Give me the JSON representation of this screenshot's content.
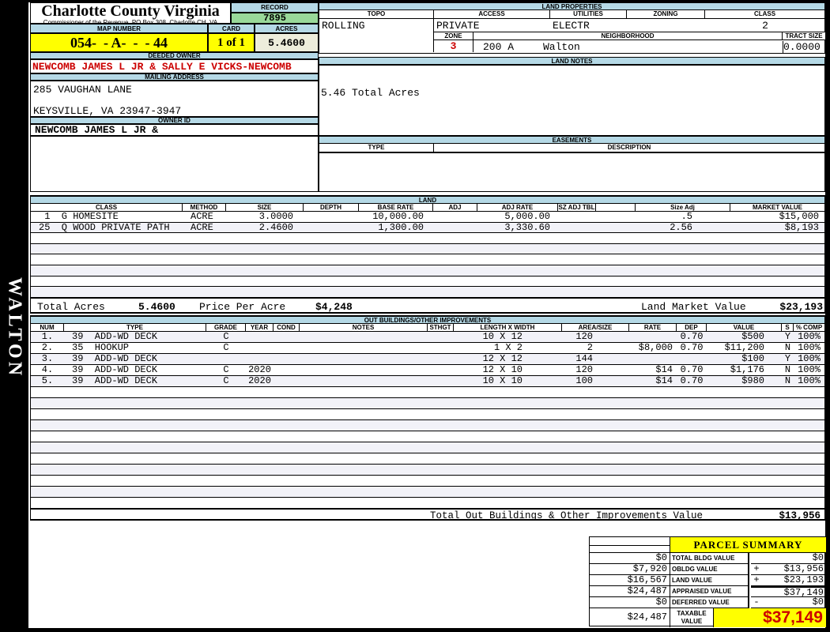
{
  "sidebar": {
    "vertical_text": "WALTON"
  },
  "colors": {
    "header_blue": "#b5d9e6",
    "record_green": "#99d999",
    "highlight_yellow": "#ffff00",
    "acres_cream": "#ededdb",
    "alert_red": "#cc0000",
    "row_stripe": "#f2f2f8"
  },
  "header": {
    "county": "Charlotte County Virginia",
    "commissioner": "Commissioner of the Revenue, PO Box 308, Charlotte CH, VA",
    "record_label": "RECORD",
    "record_value": "7895",
    "map_label": "MAP NUMBER",
    "map_value": "054-  - A-  -  - 44",
    "card_label": "CARD",
    "card_value": "1 of 1",
    "acres_label": "ACRES",
    "acres_value": "5.4600"
  },
  "owner": {
    "deeded_owner_label": "DEEDED OWNER",
    "deeded_owner": "NEWCOMB JAMES L JR & SALLY E VICKS-NEWCOMB",
    "mailing_address_label": "MAILING ADDRESS",
    "address_line1": "285 VAUGHAN LANE",
    "address_line2": "KEYSVILLE, VA 23947-3947",
    "owner_id_label": "OWNER ID",
    "owner_id": "NEWCOMB JAMES L JR &"
  },
  "land_properties": {
    "title": "LAND PROPERTIES",
    "headers": [
      "TOPO",
      "ACCESS",
      "UTILITIES",
      "ZONING",
      "CLASS"
    ],
    "topo": "ROLLING",
    "access": "PRIVATE",
    "utilities": "ELECTR",
    "zoning": "",
    "class": "2",
    "zone_label": "ZONE",
    "zone_value": "3",
    "zone_area": "200 A",
    "neighborhood_label": "NEIGHBORHOOD",
    "neighborhood_value": "Walton",
    "tract_label": "TRACT SIZE",
    "tract_value": "0.0000"
  },
  "land_notes": {
    "title": "LAND NOTES",
    "note": "5.46 Total Acres"
  },
  "easements": {
    "title": "EASEMENTS",
    "headers": [
      "TYPE",
      "DESCRIPTION"
    ]
  },
  "land": {
    "title": "LAND",
    "headers": [
      "CLASS",
      "METHOD",
      "SIZE",
      "DEPTH",
      "BASE RATE",
      "ADJ",
      "ADJ RATE",
      "SZ ADJ TBL",
      "",
      "Size Adj",
      "MARKET VALUE"
    ],
    "rows": [
      {
        "class": " 1  G HOMESITE",
        "method": "ACRE",
        "size": "3.0000",
        "depth": "",
        "base_rate": "10,000.00",
        "adj": "",
        "adj_rate": "5,000.00",
        "sz_adj_tbl": "",
        "blank": "",
        "size_adj": ".5",
        "market_value": "$15,000"
      },
      {
        "class": "25  Q WOOD PRIVATE PATH",
        "method": "ACRE",
        "size": "2.4600",
        "depth": "",
        "base_rate": "1,300.00",
        "adj": "",
        "adj_rate": "3,330.60",
        "sz_adj_tbl": "",
        "blank": "",
        "size_adj": "2.56",
        "market_value": "$8,193"
      }
    ],
    "total_acres_label": "Total Acres",
    "total_acres_value": "5.4600",
    "price_per_acre_label": "Price Per Acre",
    "price_per_acre_value": "$4,248",
    "market_value_label": "Land Market Value",
    "market_value_value": "$23,193"
  },
  "outbuildings": {
    "title": "OUT BUILDINGS/OTHER IMPROVEMENTS",
    "headers": [
      "NUM",
      "TYPE",
      "GRADE",
      "YEAR",
      "COND",
      "NOTES",
      "STHGT",
      "LENGTH X WIDTH",
      "AREA/SIZE",
      "RATE",
      "DEP",
      "VALUE",
      "S",
      "% COMP"
    ],
    "rows": [
      {
        "num": "1.",
        "type": "39  ADD-WD DECK",
        "grade": "C",
        "year": "",
        "cond": "",
        "notes": "",
        "sthgt": "",
        "lxw": "10 X 12",
        "area": "120",
        "rate": "",
        "dep": "0.70",
        "value": "$500",
        "s": "Y",
        "comp": "100%"
      },
      {
        "num": "2.",
        "type": "35  HOOKUP",
        "grade": "C",
        "year": "",
        "cond": "",
        "notes": "",
        "sthgt": "",
        "lxw": "1 X 2",
        "area": "2",
        "rate": "$8,000",
        "dep": "0.70",
        "value": "$11,200",
        "s": "N",
        "comp": "100%"
      },
      {
        "num": "3.",
        "type": "39  ADD-WD DECK",
        "grade": "",
        "year": "",
        "cond": "",
        "notes": "",
        "sthgt": "",
        "lxw": "12 X 12",
        "area": "144",
        "rate": "",
        "dep": "",
        "value": "$100",
        "s": "Y",
        "comp": "100%"
      },
      {
        "num": "4.",
        "type": "39  ADD-WD DECK",
        "grade": "C",
        "year": "2020",
        "cond": "",
        "notes": "",
        "sthgt": "",
        "lxw": "12 X 10",
        "area": "120",
        "rate": "$14",
        "dep": "0.70",
        "value": "$1,176",
        "s": "N",
        "comp": "100%"
      },
      {
        "num": "5.",
        "type": "39  ADD-WD DECK",
        "grade": "C",
        "year": "2020",
        "cond": "",
        "notes": "",
        "sthgt": "",
        "lxw": "10 X 10",
        "area": "100",
        "rate": "$14",
        "dep": "0.70",
        "value": "$980",
        "s": "N",
        "comp": "100%"
      }
    ],
    "total_label": "Total Out Buildings & Other Improvements Value",
    "total_value": "$13,956"
  },
  "parcel_summary": {
    "title": "PARCEL SUMMARY",
    "rows": [
      {
        "prior": "$0",
        "label": "TOTAL BLDG VALUE",
        "op": "",
        "value": "$0"
      },
      {
        "prior": "$7,920",
        "label": "OBLDG VALUE",
        "op": "+",
        "value": "$13,956"
      },
      {
        "prior": "$16,567",
        "label": "LAND VALUE",
        "op": "+",
        "value": "$23,193"
      },
      {
        "prior": "$24,487",
        "label": "APPRAISED VALUE",
        "op": "",
        "value": "$37,149"
      },
      {
        "prior": "$0",
        "label": "DEFERRED VALUE",
        "op": "-",
        "value": "$0"
      }
    ],
    "taxable": {
      "prior": "$24,487",
      "label": "TAXABLE VALUE",
      "value": "$37,149"
    }
  }
}
